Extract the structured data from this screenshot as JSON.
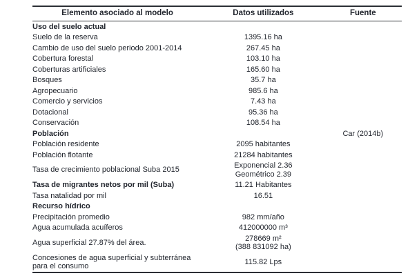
{
  "table": {
    "columns": [
      "Elemento asociado al modelo",
      "Datos utilizados",
      "Fuente"
    ],
    "rows": [
      {
        "label": "Uso del suelo actual",
        "bold": true,
        "value_lines": [],
        "fuente": ""
      },
      {
        "label": "Suelo de la reserva",
        "bold": false,
        "value_lines": [
          "1395.16 ha"
        ],
        "fuente": ""
      },
      {
        "label": "Cambio de uso del suelo periodo 2001-2014",
        "bold": false,
        "value_lines": [
          "267.45 ha"
        ],
        "fuente": ""
      },
      {
        "label": "Cobertura forestal",
        "bold": false,
        "value_lines": [
          "103.10 ha"
        ],
        "fuente": ""
      },
      {
        "label": "Coberturas artificiales",
        "bold": false,
        "value_lines": [
          "165.60 ha"
        ],
        "fuente": ""
      },
      {
        "label": "Bosques",
        "bold": false,
        "value_lines": [
          "35.7 ha"
        ],
        "fuente": ""
      },
      {
        "label": "Agropecuario",
        "bold": false,
        "value_lines": [
          "985.6 ha"
        ],
        "fuente": ""
      },
      {
        "label": "Comercio y servicios",
        "bold": false,
        "value_lines": [
          "7.43 ha"
        ],
        "fuente": ""
      },
      {
        "label": "Dotacional",
        "bold": false,
        "value_lines": [
          "95.36 ha"
        ],
        "fuente": ""
      },
      {
        "label": "Conservación",
        "bold": false,
        "value_lines": [
          "108.54 ha"
        ],
        "fuente": ""
      },
      {
        "label": "Población",
        "bold": true,
        "value_lines": [],
        "fuente": "Car (2014b)"
      },
      {
        "label": "Población residente",
        "bold": false,
        "value_lines": [
          "2095 habitantes"
        ],
        "fuente": ""
      },
      {
        "label": "Población flotante",
        "bold": false,
        "value_lines": [
          "21284 habitantes"
        ],
        "fuente": ""
      },
      {
        "label": "Tasa de crecimiento poblacional Suba 2015",
        "bold": false,
        "value_lines": [
          "Exponencial 2.36",
          "Geométrico 2.39"
        ],
        "fuente": ""
      },
      {
        "label": "Tasa de migrantes netos por mil (Suba)",
        "bold": true,
        "value_lines": [
          "11.21 Habitantes"
        ],
        "fuente": ""
      },
      {
        "label": "Tasa natalidad por mil",
        "bold": false,
        "value_lines": [
          "16.51"
        ],
        "fuente": ""
      },
      {
        "label": "Recurso hídrico",
        "bold": true,
        "value_lines": [],
        "fuente": ""
      },
      {
        "label": "Precipitación promedio",
        "bold": false,
        "value_lines": [
          "982 mm/año"
        ],
        "fuente": ""
      },
      {
        "label": "Agua acumulada acuíferos",
        "bold": false,
        "value_lines": [
          "412000000 m³"
        ],
        "fuente": ""
      },
      {
        "label": "Agua superficial 27.87% del área.",
        "bold": false,
        "value_lines": [
          "278669 m²",
          "(388 831092 ha)"
        ],
        "fuente": ""
      },
      {
        "label": "Concesiones de agua superficial y subterránea para el consumo",
        "bold": false,
        "value_lines": [
          "115.82 Lps"
        ],
        "fuente": ""
      }
    ]
  },
  "colors": {
    "text": "#22262e",
    "rule": "#2b2e34",
    "background": "#ffffff"
  }
}
